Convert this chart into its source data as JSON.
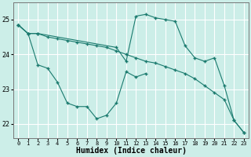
{
  "xlabel": "Humidex (Indice chaleur)",
  "bg_color": "#cceee8",
  "line_color": "#1a7a6e",
  "grid_color": "#ffffff",
  "xlim": [
    -0.5,
    23.5
  ],
  "ylim": [
    21.6,
    25.5
  ],
  "yticks": [
    22,
    23,
    24,
    25
  ],
  "xticks": [
    0,
    1,
    2,
    3,
    4,
    5,
    6,
    7,
    8,
    9,
    10,
    11,
    12,
    13,
    14,
    15,
    16,
    17,
    18,
    19,
    20,
    21,
    22,
    23
  ],
  "lines": [
    {
      "x": [
        0,
        1,
        2,
        3,
        4,
        5,
        6,
        7,
        8,
        9,
        10,
        11,
        12,
        13
      ],
      "y": [
        24.85,
        24.6,
        23.7,
        23.6,
        23.2,
        22.6,
        22.5,
        22.5,
        22.15,
        22.25,
        22.6,
        23.5,
        23.35,
        23.45
      ]
    },
    {
      "x": [
        0,
        1,
        2,
        3,
        4,
        5,
        6,
        7,
        8,
        9,
        10,
        11,
        12,
        13,
        14,
        15,
        16,
        17,
        18,
        19,
        20,
        21,
        22,
        23
      ],
      "y": [
        24.85,
        24.6,
        24.6,
        24.5,
        24.45,
        24.4,
        24.35,
        24.3,
        24.25,
        24.2,
        24.1,
        24.0,
        23.9,
        23.8,
        23.75,
        23.65,
        23.55,
        23.45,
        23.3,
        23.1,
        22.9,
        22.7,
        22.1,
        21.75
      ]
    },
    {
      "x": [
        0,
        1,
        2,
        10,
        11,
        12,
        13,
        14,
        15,
        16,
        17,
        18,
        19,
        20,
        21,
        22,
        23
      ],
      "y": [
        24.85,
        24.6,
        24.6,
        24.2,
        23.8,
        25.1,
        25.15,
        25.05,
        25.0,
        24.95,
        24.25,
        23.9,
        23.8,
        23.9,
        23.1,
        22.1,
        21.75
      ]
    }
  ]
}
